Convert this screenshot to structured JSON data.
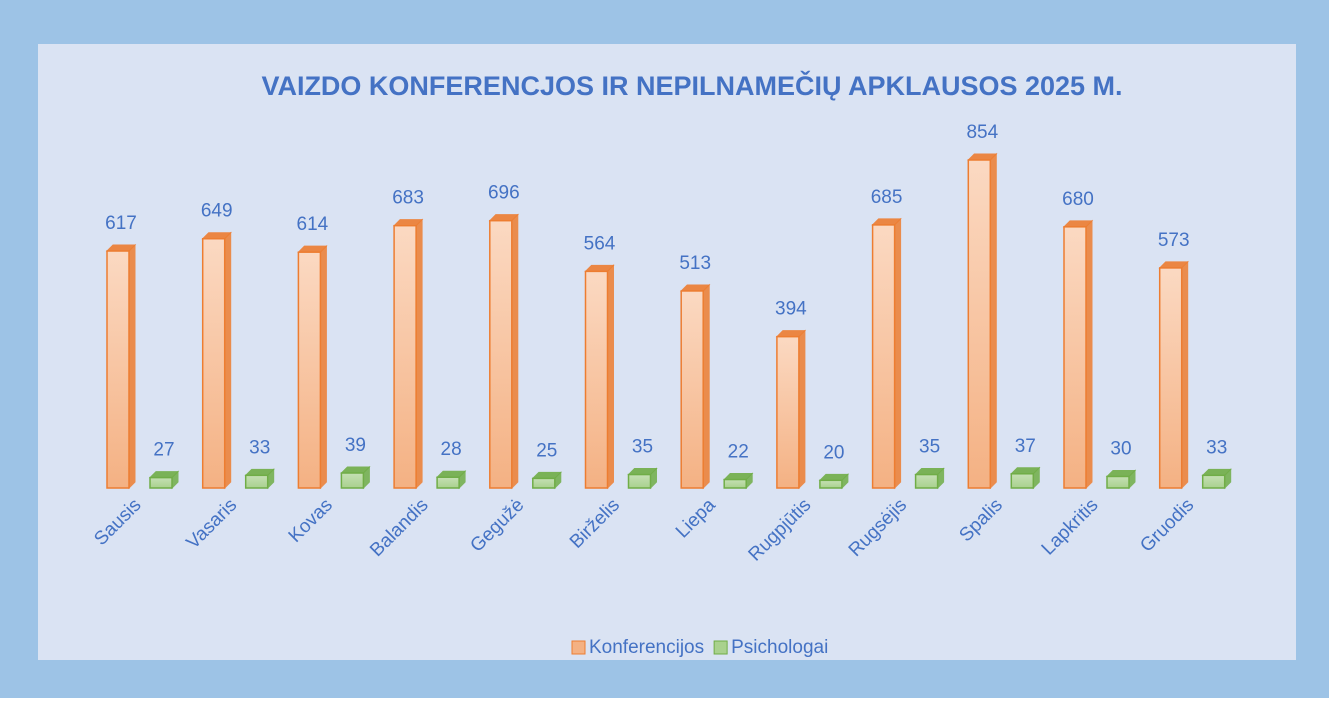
{
  "chart_data": {
    "type": "bar3d",
    "title": "VAIZDO KONFERENCJOS IR NEPILNAMEČIŲ APKLAUSOS 2025 M.",
    "categories": [
      "Sausis",
      "Vasaris",
      "Kovas",
      "Balandis",
      "Gegužė",
      "Birželis",
      "Liepa",
      "Rugpjūtis",
      "Rugsėjis",
      "Spalis",
      "Lapkritis",
      "Gruodis"
    ],
    "series": [
      {
        "name": "Konferencijos",
        "color": "#f4b183",
        "values": [
          617,
          649,
          614,
          683,
          696,
          564,
          513,
          394,
          685,
          854,
          680,
          573
        ]
      },
      {
        "name": "Psichologai",
        "color": "#a9d18e",
        "values": [
          27,
          33,
          39,
          28,
          25,
          35,
          22,
          20,
          35,
          37,
          30,
          33
        ]
      }
    ],
    "legend": "bottom"
  }
}
